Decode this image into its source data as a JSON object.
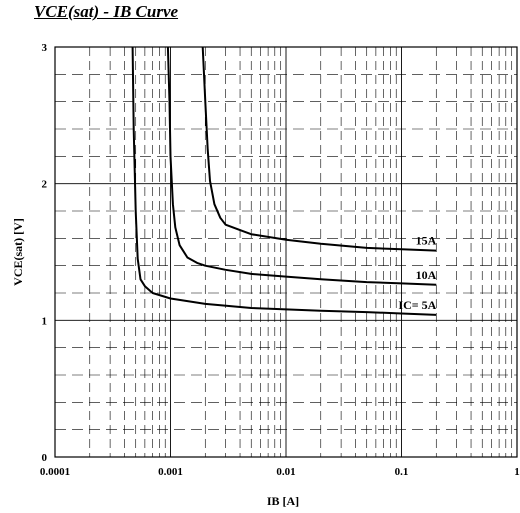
{
  "chart_data": {
    "type": "line",
    "title": "VCE(sat) - IB Curve",
    "xlabel": "IB [A]",
    "ylabel": "VCE(sat) [V]",
    "xscale": "log",
    "xlim": [
      0.0001,
      1
    ],
    "ylim": [
      0,
      3
    ],
    "x_ticks": [
      "0.0001",
      "0.001",
      "0.01",
      "0.1",
      "1"
    ],
    "y_ticks": [
      "0",
      "1",
      "2",
      "3"
    ],
    "grid": true,
    "series": [
      {
        "name": "IC= 5A",
        "x": [
          0.00047,
          0.00048,
          0.0005,
          0.00052,
          0.00055,
          0.0006,
          0.0007,
          0.001,
          0.002,
          0.005,
          0.01,
          0.02,
          0.05,
          0.1,
          0.2
        ],
        "y": [
          3.0,
          2.4,
          1.8,
          1.45,
          1.3,
          1.25,
          1.2,
          1.16,
          1.12,
          1.09,
          1.08,
          1.07,
          1.06,
          1.05,
          1.04
        ]
      },
      {
        "name": "10A",
        "x": [
          0.00095,
          0.00098,
          0.001,
          0.00105,
          0.0011,
          0.0012,
          0.0014,
          0.0017,
          0.002,
          0.003,
          0.005,
          0.01,
          0.02,
          0.05,
          0.1,
          0.2
        ],
        "y": [
          3.0,
          2.6,
          2.2,
          1.85,
          1.68,
          1.55,
          1.46,
          1.42,
          1.4,
          1.37,
          1.34,
          1.32,
          1.3,
          1.28,
          1.27,
          1.26
        ]
      },
      {
        "name": "15A",
        "x": [
          0.0019,
          0.002,
          0.0021,
          0.0022,
          0.0024,
          0.0027,
          0.003,
          0.004,
          0.005,
          0.01,
          0.02,
          0.05,
          0.1,
          0.2
        ],
        "y": [
          3.0,
          2.6,
          2.25,
          2.02,
          1.85,
          1.75,
          1.7,
          1.66,
          1.63,
          1.59,
          1.56,
          1.53,
          1.52,
          1.51
        ]
      }
    ]
  }
}
